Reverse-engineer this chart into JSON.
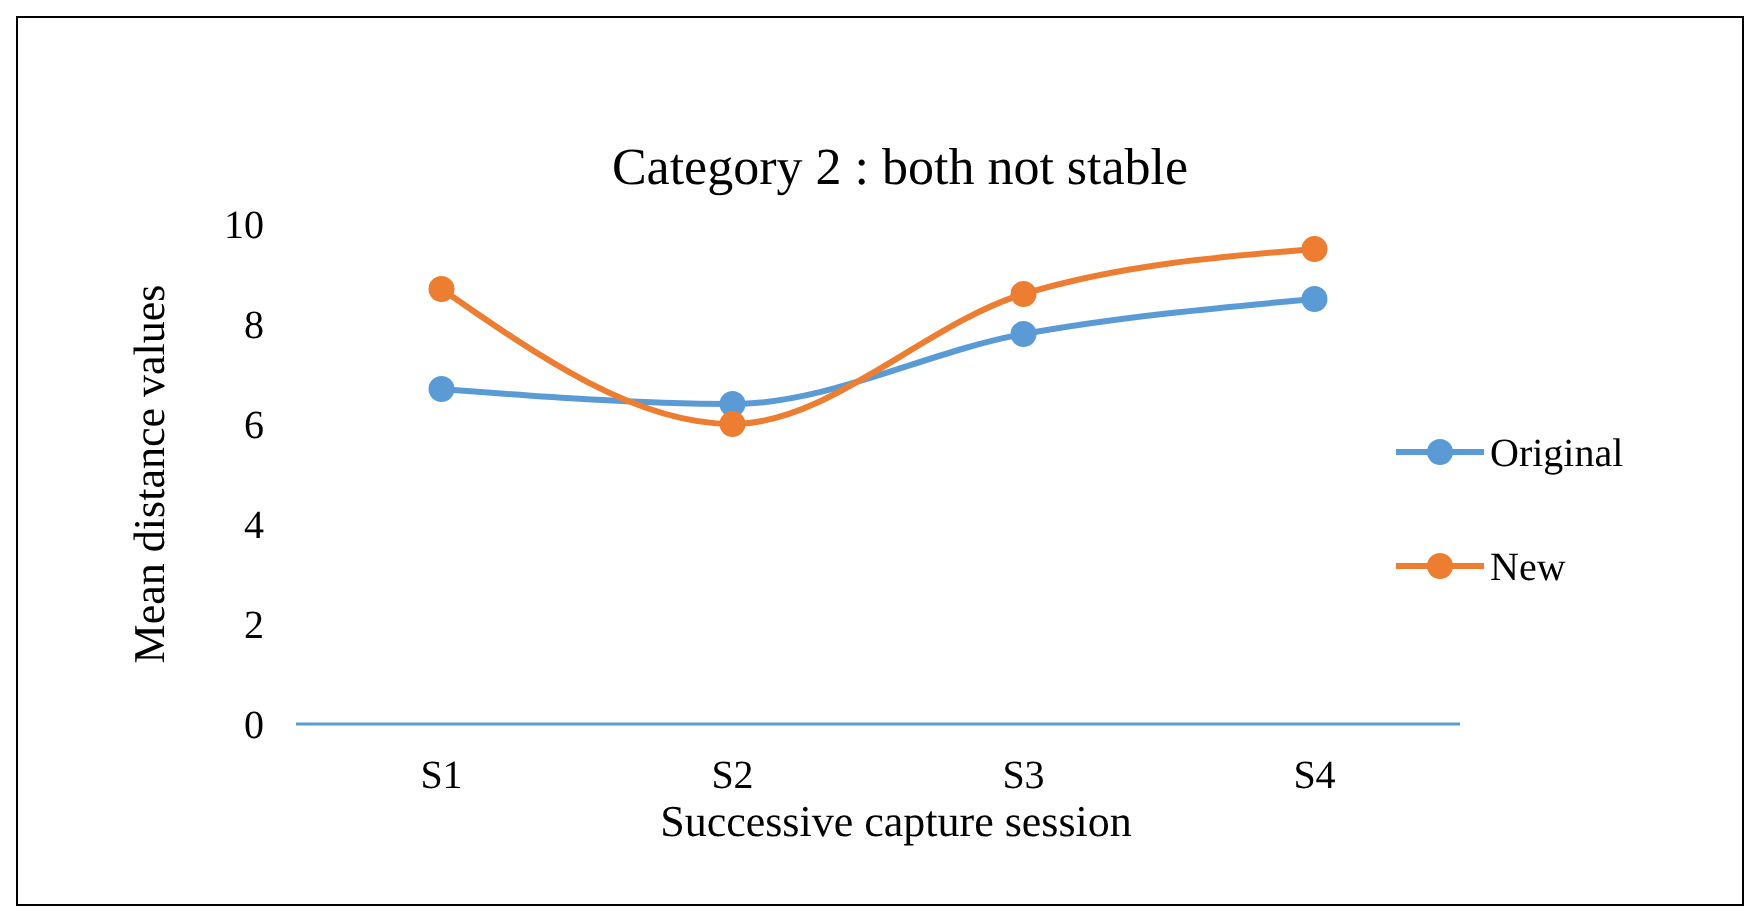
{
  "chart_data": {
    "type": "line",
    "title": "Category 2 : both not stable",
    "xlabel": "Successive capture session",
    "ylabel": "Mean distance values",
    "categories": [
      "S1",
      "S2",
      "S3",
      "S4"
    ],
    "series": [
      {
        "name": "Original",
        "color": "#5b9bd5",
        "values": [
          6.7,
          6.4,
          7.8,
          8.5
        ]
      },
      {
        "name": "New",
        "color": "#ed7d31",
        "values": [
          8.7,
          6.0,
          8.6,
          9.5
        ]
      }
    ],
    "ylim": [
      0,
      10
    ],
    "yticks": [
      0,
      2,
      4,
      6,
      8,
      10
    ],
    "grid": false,
    "legend": "right",
    "marker": "circle",
    "line_style": "solid"
  }
}
